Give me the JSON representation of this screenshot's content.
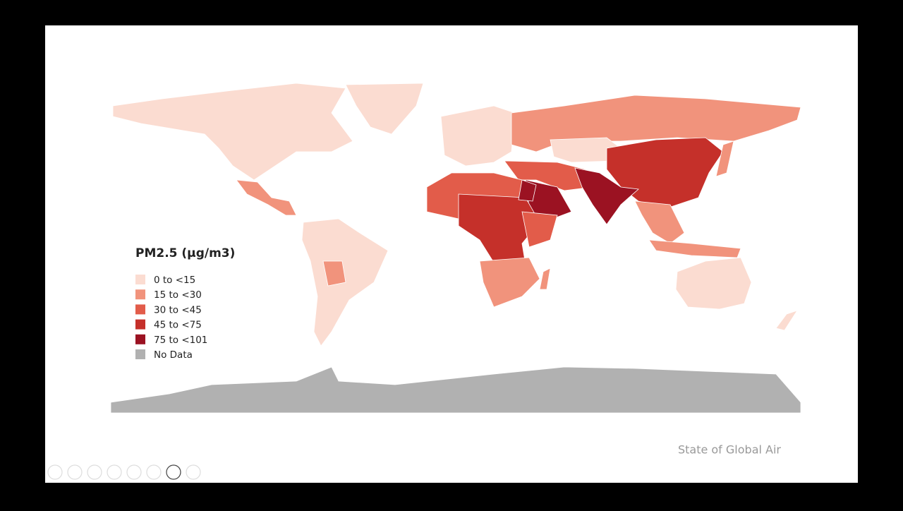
{
  "legend": {
    "title": "PM2.5 (μg/m3)",
    "items": [
      {
        "label": "0 to <15",
        "color": "#fbdcd1"
      },
      {
        "label": "15 to <30",
        "color": "#f1937c"
      },
      {
        "label": "30 to <45",
        "color": "#e25c4a"
      },
      {
        "label": "45 to <75",
        "color": "#c5302a"
      },
      {
        "label": "75 to <101",
        "color": "#9b1222"
      },
      {
        "label": "No Data",
        "color": "#b1b1b1"
      }
    ]
  },
  "footer": {
    "source": "State of Global Air"
  }
}
